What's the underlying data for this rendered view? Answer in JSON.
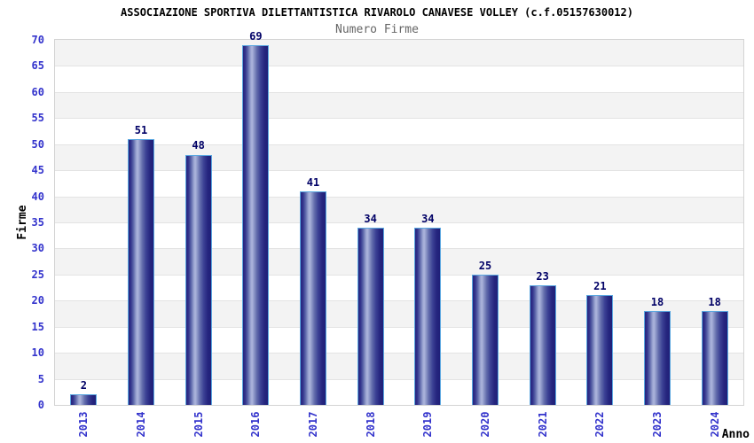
{
  "page": {
    "title": "ASSOCIAZIONE SPORTIVA DILETTANTISTICA RIVAROLO CANAVESE VOLLEY (c.f.05157630012)",
    "subtitle": "Numero Firme"
  },
  "chart_data": {
    "type": "bar",
    "title": "ASSOCIAZIONE SPORTIVA DILETTANTISTICA RIVAROLO CANAVESE VOLLEY (c.f.05157630012)",
    "subtitle": "Numero Firme",
    "xlabel": "Anno",
    "ylabel": "Firme",
    "categories": [
      "2013",
      "2014",
      "2015",
      "2016",
      "2017",
      "2018",
      "2019",
      "2020",
      "2021",
      "2022",
      "2023",
      "2024"
    ],
    "values": [
      2,
      51,
      48,
      69,
      41,
      34,
      34,
      25,
      23,
      21,
      18,
      18
    ],
    "ylim": [
      0,
      70
    ],
    "ytick_step": 5,
    "grid": "horizontal-gridlines-with-alternating-bands",
    "legend": "none",
    "colors": {
      "bar_dark": "#26267f",
      "bar_highlight": "#aeb6dd",
      "bar_border": "#5aa7e0",
      "axis_tick_label": "#3333cc",
      "value_label": "#000066",
      "band_gray": "#f3f3f3",
      "band_white": "#ffffff",
      "gridline": "#e3e3e3",
      "plot_border": "#d3d3d3",
      "title": "#000000",
      "subtitle": "#666666"
    }
  }
}
